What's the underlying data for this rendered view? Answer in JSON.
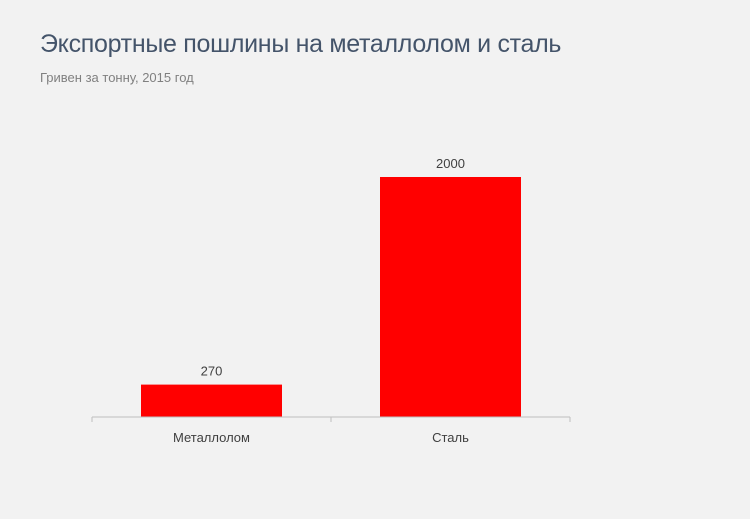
{
  "chart_data": {
    "type": "bar",
    "title": "Экспортные пошлины на металлолом и сталь",
    "subtitle": "Гривен за тонну, 2015 год",
    "categories": [
      "Металлолом",
      "Сталь"
    ],
    "values": [
      270,
      2000
    ],
    "data_labels": [
      "270",
      "2000"
    ],
    "ylim": [
      0,
      2000
    ],
    "grid": false,
    "legend": "none",
    "bar_color": "#ff0000",
    "axis_color": "#bfbfbf"
  }
}
